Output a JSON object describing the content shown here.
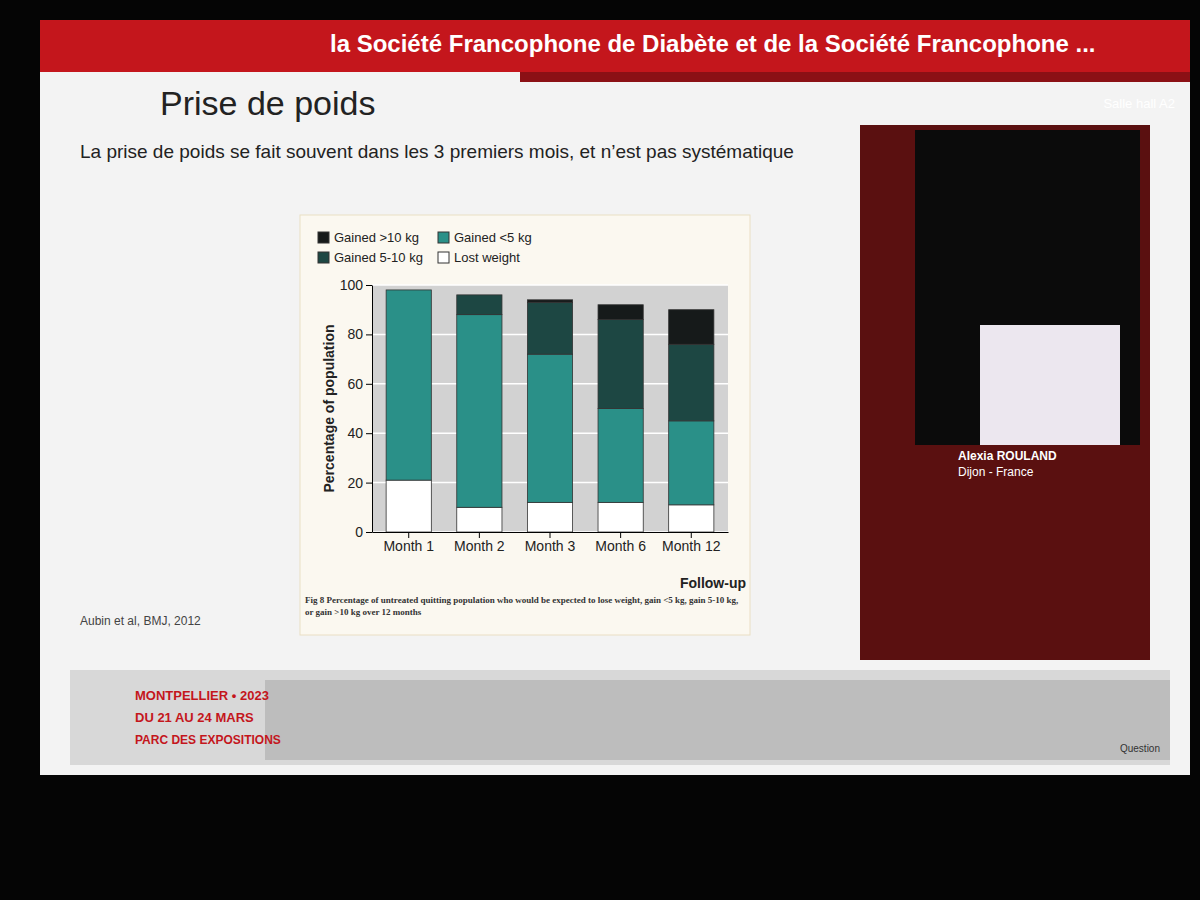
{
  "chart_data": {
    "type": "bar",
    "stacked": true,
    "title": "Prise de poids",
    "subtitle": "La prise de poids se fait souvent dans les 3 premiers mois, et n’est pas systématique",
    "x_label": "Follow-up",
    "y_label": "Percentage of population",
    "categories": [
      "Month 1",
      "Month 2",
      "Month 3",
      "Month 6",
      "Month 12"
    ],
    "series": [
      {
        "name": "Lost weight",
        "color": "#ffffff",
        "values": [
          21,
          10,
          12,
          12,
          11
        ]
      },
      {
        "name": "Gained <5 kg",
        "color": "#2a9088",
        "values": [
          77,
          78,
          60,
          38,
          34
        ]
      },
      {
        "name": "Gained 5-10 kg",
        "color": "#1d4743",
        "values": [
          0,
          8,
          21,
          36,
          31
        ]
      },
      {
        "name": "Gained >10 kg",
        "color": "#161a1a",
        "values": [
          0,
          0,
          1,
          6,
          14
        ]
      }
    ],
    "ylim": [
      0,
      100
    ],
    "yticks": [
      0,
      20,
      40,
      60,
      80,
      100
    ],
    "grid": true,
    "legend": "top",
    "annotations": [
      "la Société Francophone de Diabète et de la Société Francophone ...",
      "Salle hall A2",
      "Aubin et al, BMJ, 2012",
      "Fig 8 Percentage of untreated quitting population who would be expected to lose weight, gain <5 kg, gain 5-10 kg, or gain >10 kg over 12 months",
      "Alexia ROULAND",
      "Dijon - France",
      "MONTPELLIER • 2023",
      "DU 21 AU 24 MARS",
      "PARC DES EXPOSITIONS",
      "Question"
    ]
  }
}
